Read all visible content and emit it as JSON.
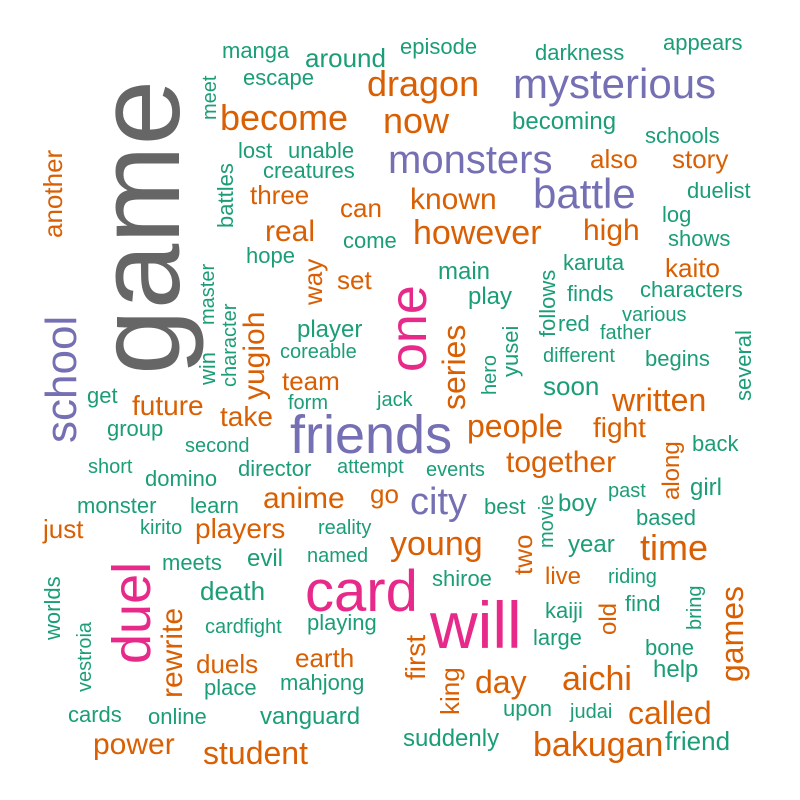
{
  "words": [
    {
      "text": "game"
    },
    {
      "text": "will"
    },
    {
      "text": "card"
    },
    {
      "text": "friends"
    },
    {
      "text": "duel"
    },
    {
      "text": "one"
    },
    {
      "text": "school"
    },
    {
      "text": "mysterious"
    },
    {
      "text": "battle"
    },
    {
      "text": "monsters"
    },
    {
      "text": "city"
    },
    {
      "text": "dragon"
    },
    {
      "text": "now"
    },
    {
      "text": "become"
    },
    {
      "text": "however"
    },
    {
      "text": "time"
    },
    {
      "text": "bakugan"
    },
    {
      "text": "aichi"
    },
    {
      "text": "young"
    },
    {
      "text": "student"
    },
    {
      "text": "series"
    },
    {
      "text": "games"
    },
    {
      "text": "people"
    },
    {
      "text": "together"
    },
    {
      "text": "written"
    },
    {
      "text": "anime"
    },
    {
      "text": "players"
    },
    {
      "text": "power"
    },
    {
      "text": "called"
    },
    {
      "text": "day"
    },
    {
      "text": "rewrite"
    },
    {
      "text": "yugioh"
    },
    {
      "text": "high"
    },
    {
      "text": "real"
    },
    {
      "text": "future"
    },
    {
      "text": "known"
    },
    {
      "text": "earth"
    },
    {
      "text": "duels"
    },
    {
      "text": "take"
    },
    {
      "text": "kaito"
    },
    {
      "text": "first"
    },
    {
      "text": "fight"
    },
    {
      "text": "team"
    },
    {
      "text": "story"
    },
    {
      "text": "also"
    },
    {
      "text": "three"
    },
    {
      "text": "can"
    },
    {
      "text": "set"
    },
    {
      "text": "way"
    },
    {
      "text": "two"
    },
    {
      "text": "another"
    },
    {
      "text": "just"
    },
    {
      "text": "go"
    },
    {
      "text": "live"
    },
    {
      "text": "old"
    },
    {
      "text": "along"
    },
    {
      "text": "king"
    },
    {
      "text": "episode"
    },
    {
      "text": "around"
    },
    {
      "text": "manga"
    },
    {
      "text": "escape"
    },
    {
      "text": "darkness"
    },
    {
      "text": "appears"
    },
    {
      "text": "becoming"
    },
    {
      "text": "schools"
    },
    {
      "text": "lost"
    },
    {
      "text": "unable"
    },
    {
      "text": "creatures"
    },
    {
      "text": "duelist"
    },
    {
      "text": "log"
    },
    {
      "text": "shows"
    },
    {
      "text": "come"
    },
    {
      "text": "hope"
    },
    {
      "text": "main"
    },
    {
      "text": "karuta"
    },
    {
      "text": "play"
    },
    {
      "text": "finds"
    },
    {
      "text": "characters"
    },
    {
      "text": "various"
    },
    {
      "text": "red"
    },
    {
      "text": "father"
    },
    {
      "text": "player"
    },
    {
      "text": "coreable"
    },
    {
      "text": "different"
    },
    {
      "text": "begins"
    },
    {
      "text": "soon"
    },
    {
      "text": "get"
    },
    {
      "text": "form"
    },
    {
      "text": "jack"
    },
    {
      "text": "group"
    },
    {
      "text": "second"
    },
    {
      "text": "back"
    },
    {
      "text": "short"
    },
    {
      "text": "domino"
    },
    {
      "text": "director"
    },
    {
      "text": "attempt"
    },
    {
      "text": "events"
    },
    {
      "text": "past"
    },
    {
      "text": "girl"
    },
    {
      "text": "monster"
    },
    {
      "text": "learn"
    },
    {
      "text": "best"
    },
    {
      "text": "boy"
    },
    {
      "text": "kirito"
    },
    {
      "text": "reality"
    },
    {
      "text": "based"
    },
    {
      "text": "meets"
    },
    {
      "text": "evil"
    },
    {
      "text": "named"
    },
    {
      "text": "year"
    },
    {
      "text": "death"
    },
    {
      "text": "shiroe"
    },
    {
      "text": "riding"
    },
    {
      "text": "find"
    },
    {
      "text": "kaiji"
    },
    {
      "text": "cardfight"
    },
    {
      "text": "playing"
    },
    {
      "text": "large"
    },
    {
      "text": "bone"
    },
    {
      "text": "help"
    },
    {
      "text": "place"
    },
    {
      "text": "mahjong"
    },
    {
      "text": "cards"
    },
    {
      "text": "online"
    },
    {
      "text": "vanguard"
    },
    {
      "text": "upon"
    },
    {
      "text": "judai"
    },
    {
      "text": "suddenly"
    },
    {
      "text": "friend"
    },
    {
      "text": "meet"
    },
    {
      "text": "battles"
    },
    {
      "text": "master"
    },
    {
      "text": "character"
    },
    {
      "text": "win"
    },
    {
      "text": "yusei"
    },
    {
      "text": "hero"
    },
    {
      "text": "follows"
    },
    {
      "text": "several"
    },
    {
      "text": "movie"
    },
    {
      "text": "worlds"
    },
    {
      "text": "vestroia"
    },
    {
      "text": "bring"
    }
  ]
}
